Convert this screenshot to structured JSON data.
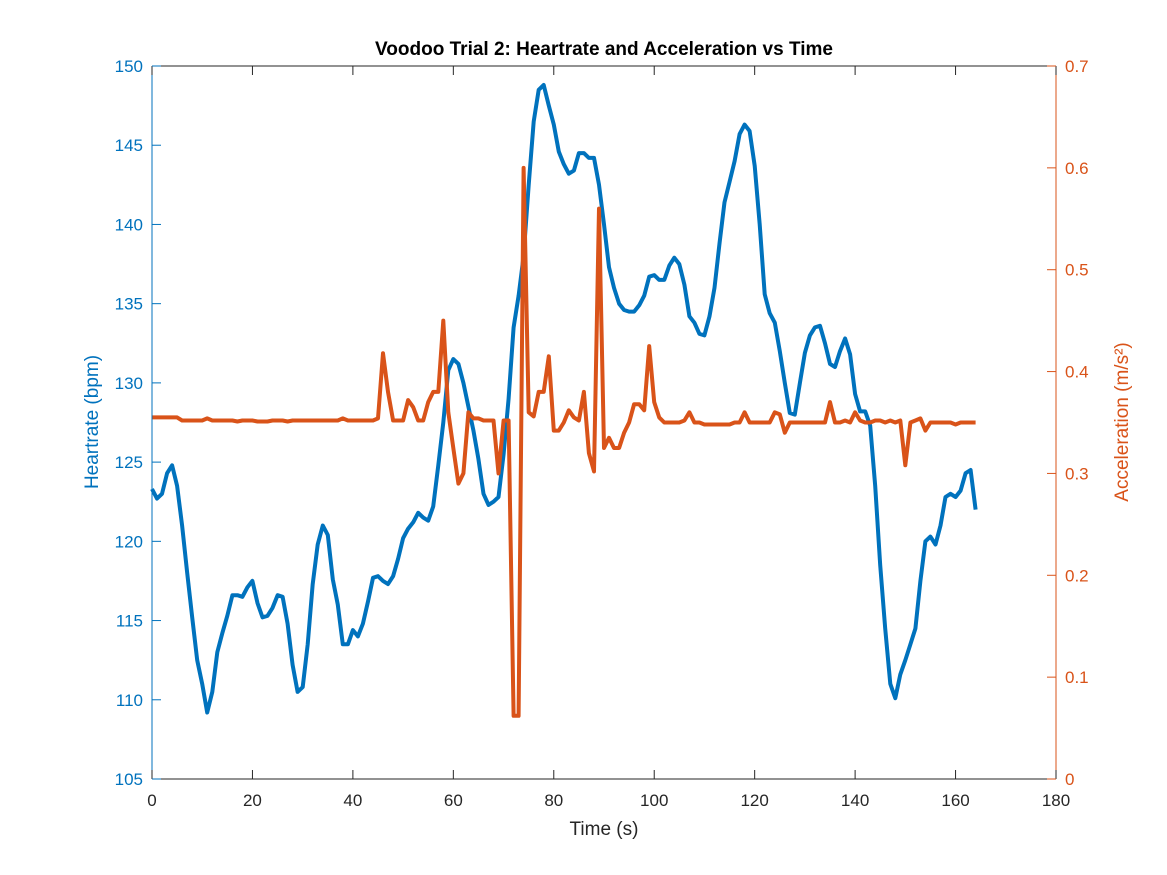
{
  "chart_data": {
    "type": "line",
    "title": "Voodoo Trial 2: Heartrate and Acceleration vs Time",
    "xlabel": "Time (s)",
    "ylabel_left": "Heartrate (bpm)",
    "ylabel_right": "Acceleration (m/s²)",
    "xlim": [
      0,
      180
    ],
    "ylim_left": [
      105,
      150
    ],
    "ylim_right": [
      0,
      0.7
    ],
    "x_ticks": [
      "0",
      "20",
      "40",
      "60",
      "80",
      "100",
      "120",
      "140",
      "160",
      "180"
    ],
    "y_left_ticks": [
      "105",
      "110",
      "115",
      "120",
      "125",
      "130",
      "135",
      "140",
      "145",
      "150"
    ],
    "y_right_ticks": [
      "0",
      "0.1",
      "0.2",
      "0.3",
      "0.4",
      "0.5",
      "0.6",
      "0.7"
    ],
    "grid": false,
    "colors": {
      "heartrate": "#0072BD",
      "acceleration": "#D95319",
      "axes": "#262626"
    },
    "series": [
      {
        "axis": "left",
        "color": "#0072BD",
        "points": [
          [
            0,
            123.3
          ],
          [
            1,
            122.7
          ],
          [
            2,
            123
          ],
          [
            3,
            124.3
          ],
          [
            4,
            124.8
          ],
          [
            5,
            123.5
          ],
          [
            6,
            121
          ],
          [
            7,
            118
          ],
          [
            8,
            115.2
          ],
          [
            9,
            112.5
          ],
          [
            10,
            111
          ],
          [
            11,
            109.2
          ],
          [
            12,
            110.5
          ],
          [
            13,
            113
          ],
          [
            14,
            114.2
          ],
          [
            15,
            115.3
          ],
          [
            16,
            116.6
          ],
          [
            17,
            116.6
          ],
          [
            18,
            116.5
          ],
          [
            19,
            117.1
          ],
          [
            20,
            117.5
          ],
          [
            21,
            116.1
          ],
          [
            22,
            115.2
          ],
          [
            23,
            115.3
          ],
          [
            24,
            115.8
          ],
          [
            25,
            116.6
          ],
          [
            26,
            116.5
          ],
          [
            27,
            114.8
          ],
          [
            28,
            112.2
          ],
          [
            29,
            110.5
          ],
          [
            30,
            110.8
          ],
          [
            31,
            113.5
          ],
          [
            32,
            117.3
          ],
          [
            33,
            119.8
          ],
          [
            34,
            121
          ],
          [
            35,
            120.4
          ],
          [
            36,
            117.6
          ],
          [
            37,
            116
          ],
          [
            38,
            113.5
          ],
          [
            39,
            113.5
          ],
          [
            40,
            114.4
          ],
          [
            41,
            114
          ],
          [
            42,
            114.8
          ],
          [
            43,
            116.2
          ],
          [
            44,
            117.7
          ],
          [
            45,
            117.8
          ],
          [
            46,
            117.5
          ],
          [
            47,
            117.3
          ],
          [
            48,
            117.8
          ],
          [
            49,
            118.9
          ],
          [
            50,
            120.2
          ],
          [
            51,
            120.8
          ],
          [
            52,
            121.2
          ],
          [
            53,
            121.8
          ],
          [
            54,
            121.5
          ],
          [
            55,
            121.3
          ],
          [
            56,
            122.2
          ],
          [
            57,
            124.8
          ],
          [
            58,
            127.5
          ],
          [
            59,
            130.8
          ],
          [
            60,
            131.5
          ],
          [
            61,
            131.2
          ],
          [
            62,
            130
          ],
          [
            63,
            128.5
          ],
          [
            64,
            127
          ],
          [
            65,
            125.2
          ],
          [
            66,
            123
          ],
          [
            67,
            122.3
          ],
          [
            68,
            122.5
          ],
          [
            69,
            122.8
          ],
          [
            70,
            125.5
          ],
          [
            71,
            129
          ],
          [
            72,
            133.5
          ],
          [
            73,
            135.5
          ],
          [
            74,
            138
          ],
          [
            75,
            142.5
          ],
          [
            76,
            146.5
          ],
          [
            77,
            148.5
          ],
          [
            78,
            148.8
          ],
          [
            79,
            147.5
          ],
          [
            80,
            146.3
          ],
          [
            81,
            144.6
          ],
          [
            82,
            143.8
          ],
          [
            83,
            143.2
          ],
          [
            84,
            143.4
          ],
          [
            85,
            144.5
          ],
          [
            86,
            144.5
          ],
          [
            87,
            144.2
          ],
          [
            88,
            144.2
          ],
          [
            89,
            142.5
          ],
          [
            90,
            140
          ],
          [
            91,
            137.3
          ],
          [
            92,
            136
          ],
          [
            93,
            135
          ],
          [
            94,
            134.6
          ],
          [
            95,
            134.5
          ],
          [
            96,
            134.5
          ],
          [
            97,
            134.9
          ],
          [
            98,
            135.5
          ],
          [
            99,
            136.7
          ],
          [
            100,
            136.8
          ],
          [
            101,
            136.5
          ],
          [
            102,
            136.5
          ],
          [
            103,
            137.4
          ],
          [
            104,
            137.9
          ],
          [
            105,
            137.5
          ],
          [
            106,
            136.2
          ],
          [
            107,
            134.2
          ],
          [
            108,
            133.8
          ],
          [
            109,
            133.1
          ],
          [
            110,
            133
          ],
          [
            111,
            134.2
          ],
          [
            112,
            136
          ],
          [
            113,
            138.8
          ],
          [
            114,
            141.4
          ],
          [
            115,
            142.7
          ],
          [
            116,
            144
          ],
          [
            117,
            145.7
          ],
          [
            118,
            146.3
          ],
          [
            119,
            145.9
          ],
          [
            120,
            143.7
          ],
          [
            121,
            140
          ],
          [
            122,
            135.6
          ],
          [
            123,
            134.4
          ],
          [
            124,
            133.8
          ],
          [
            125,
            132
          ],
          [
            126,
            130
          ],
          [
            127,
            128.1
          ],
          [
            128,
            128
          ],
          [
            129,
            130
          ],
          [
            130,
            131.9
          ],
          [
            131,
            133
          ],
          [
            132,
            133.5
          ],
          [
            133,
            133.6
          ],
          [
            134,
            132.5
          ],
          [
            135,
            131.2
          ],
          [
            136,
            131
          ],
          [
            137,
            132
          ],
          [
            138,
            132.8
          ],
          [
            139,
            131.8
          ],
          [
            140,
            129.3
          ],
          [
            141,
            128.2
          ],
          [
            142,
            128.2
          ],
          [
            143,
            127.3
          ],
          [
            144,
            123.5
          ],
          [
            145,
            118.5
          ],
          [
            146,
            114.5
          ],
          [
            147,
            111
          ],
          [
            148,
            110.1
          ],
          [
            149,
            111.6
          ],
          [
            150,
            112.5
          ],
          [
            151,
            113.5
          ],
          [
            152,
            114.5
          ],
          [
            153,
            117.5
          ],
          [
            154,
            120
          ],
          [
            155,
            120.3
          ],
          [
            156,
            119.8
          ],
          [
            157,
            121
          ],
          [
            158,
            122.8
          ],
          [
            159,
            123
          ],
          [
            160,
            122.8
          ],
          [
            161,
            123.2
          ],
          [
            162,
            124.3
          ],
          [
            163,
            124.5
          ],
          [
            164,
            122
          ]
        ]
      },
      {
        "axis": "right",
        "color": "#D95319",
        "points": [
          [
            0,
            0.355
          ],
          [
            5,
            0.355
          ],
          [
            6,
            0.352
          ],
          [
            10,
            0.352
          ],
          [
            11,
            0.354
          ],
          [
            12,
            0.352
          ],
          [
            16,
            0.352
          ],
          [
            17,
            0.351
          ],
          [
            18,
            0.352
          ],
          [
            20,
            0.352
          ],
          [
            21,
            0.351
          ],
          [
            23,
            0.351
          ],
          [
            24,
            0.352
          ],
          [
            26,
            0.352
          ],
          [
            27,
            0.351
          ],
          [
            28,
            0.352
          ],
          [
            37,
            0.352
          ],
          [
            38,
            0.354
          ],
          [
            39,
            0.352
          ],
          [
            44,
            0.352
          ],
          [
            45,
            0.354
          ],
          [
            46,
            0.418
          ],
          [
            47,
            0.38
          ],
          [
            48,
            0.352
          ],
          [
            49,
            0.352
          ],
          [
            50,
            0.352
          ],
          [
            51,
            0.372
          ],
          [
            52,
            0.365
          ],
          [
            53,
            0.352
          ],
          [
            54,
            0.352
          ],
          [
            55,
            0.37
          ],
          [
            56,
            0.38
          ],
          [
            57,
            0.38
          ],
          [
            58,
            0.45
          ],
          [
            59,
            0.36
          ],
          [
            60,
            0.325
          ],
          [
            61,
            0.29
          ],
          [
            62,
            0.3
          ],
          [
            63,
            0.36
          ],
          [
            64,
            0.354
          ],
          [
            65,
            0.354
          ],
          [
            66,
            0.352
          ],
          [
            67,
            0.352
          ],
          [
            68,
            0.352
          ],
          [
            69,
            0.3
          ],
          [
            70,
            0.352
          ],
          [
            71,
            0.352
          ],
          [
            72,
            0.062
          ],
          [
            73,
            0.062
          ],
          [
            74,
            0.6
          ],
          [
            75,
            0.36
          ],
          [
            76,
            0.356
          ],
          [
            77,
            0.38
          ],
          [
            78,
            0.38
          ],
          [
            79,
            0.415
          ],
          [
            80,
            0.342
          ],
          [
            81,
            0.342
          ],
          [
            82,
            0.35
          ],
          [
            83,
            0.362
          ],
          [
            84,
            0.355
          ],
          [
            85,
            0.352
          ],
          [
            86,
            0.38
          ],
          [
            87,
            0.32
          ],
          [
            88,
            0.302
          ],
          [
            89,
            0.56
          ],
          [
            90,
            0.325
          ],
          [
            91,
            0.335
          ],
          [
            92,
            0.325
          ],
          [
            93,
            0.325
          ],
          [
            94,
            0.34
          ],
          [
            95,
            0.35
          ],
          [
            96,
            0.368
          ],
          [
            97,
            0.368
          ],
          [
            98,
            0.362
          ],
          [
            99,
            0.425
          ],
          [
            100,
            0.37
          ],
          [
            101,
            0.355
          ],
          [
            102,
            0.35
          ],
          [
            103,
            0.35
          ],
          [
            104,
            0.35
          ],
          [
            105,
            0.35
          ],
          [
            106,
            0.352
          ],
          [
            107,
            0.36
          ],
          [
            108,
            0.35
          ],
          [
            109,
            0.35
          ],
          [
            110,
            0.348
          ],
          [
            111,
            0.348
          ],
          [
            112,
            0.348
          ],
          [
            113,
            0.348
          ],
          [
            114,
            0.348
          ],
          [
            115,
            0.348
          ],
          [
            116,
            0.35
          ],
          [
            117,
            0.35
          ],
          [
            118,
            0.36
          ],
          [
            119,
            0.35
          ],
          [
            120,
            0.35
          ],
          [
            121,
            0.35
          ],
          [
            122,
            0.35
          ],
          [
            123,
            0.35
          ],
          [
            124,
            0.36
          ],
          [
            125,
            0.358
          ],
          [
            126,
            0.34
          ],
          [
            127,
            0.35
          ],
          [
            128,
            0.35
          ],
          [
            129,
            0.35
          ],
          [
            130,
            0.35
          ],
          [
            131,
            0.35
          ],
          [
            132,
            0.35
          ],
          [
            133,
            0.35
          ],
          [
            134,
            0.35
          ],
          [
            135,
            0.37
          ],
          [
            136,
            0.35
          ],
          [
            137,
            0.35
          ],
          [
            138,
            0.352
          ],
          [
            139,
            0.35
          ],
          [
            140,
            0.36
          ],
          [
            141,
            0.352
          ],
          [
            142,
            0.35
          ],
          [
            143,
            0.35
          ],
          [
            144,
            0.352
          ],
          [
            145,
            0.352
          ],
          [
            146,
            0.35
          ],
          [
            147,
            0.352
          ],
          [
            148,
            0.35
          ],
          [
            149,
            0.352
          ],
          [
            150,
            0.308
          ],
          [
            151,
            0.35
          ],
          [
            152,
            0.352
          ],
          [
            153,
            0.354
          ],
          [
            154,
            0.342
          ],
          [
            155,
            0.35
          ],
          [
            156,
            0.35
          ],
          [
            157,
            0.35
          ],
          [
            158,
            0.35
          ],
          [
            159,
            0.35
          ],
          [
            160,
            0.348
          ],
          [
            161,
            0.35
          ],
          [
            162,
            0.35
          ],
          [
            163,
            0.35
          ],
          [
            164,
            0.35
          ]
        ]
      }
    ]
  }
}
